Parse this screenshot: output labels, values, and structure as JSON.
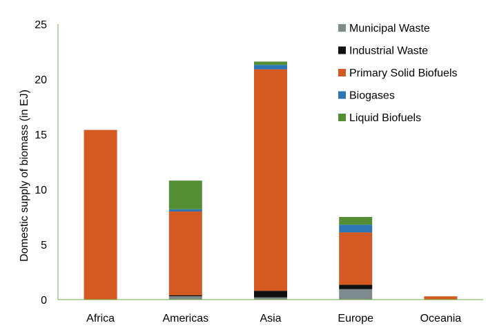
{
  "chart_data": {
    "type": "bar",
    "stacked": true,
    "categories": [
      "Africa",
      "Americas",
      "Asia",
      "Europe",
      "Oceania"
    ],
    "series": [
      {
        "name": "Municipal Waste",
        "color": "#7f8c8d",
        "values": [
          0,
          0.3,
          0.2,
          0.95,
          0
        ]
      },
      {
        "name": "Industrial Waste",
        "color": "#111111",
        "values": [
          0,
          0.1,
          0.6,
          0.4,
          0
        ]
      },
      {
        "name": "Primary Solid Biofuels",
        "color": "#d55a22",
        "values": [
          15.4,
          7.6,
          20.1,
          4.75,
          0.3
        ]
      },
      {
        "name": "Biogases",
        "color": "#2e75b6",
        "values": [
          0,
          0.2,
          0.4,
          0.7,
          0
        ]
      },
      {
        "name": "Liquid Biofuels",
        "color": "#538d34",
        "values": [
          0,
          2.6,
          0.3,
          0.7,
          0
        ]
      }
    ],
    "ylabel": "Domestic supply of biomass (in EJ)",
    "xlabel": "",
    "ylim": [
      0,
      25
    ],
    "yticks": [
      0,
      5,
      10,
      15,
      20,
      25
    ],
    "grid": false,
    "legend": "top-right",
    "axis_color": "#70ad47"
  }
}
